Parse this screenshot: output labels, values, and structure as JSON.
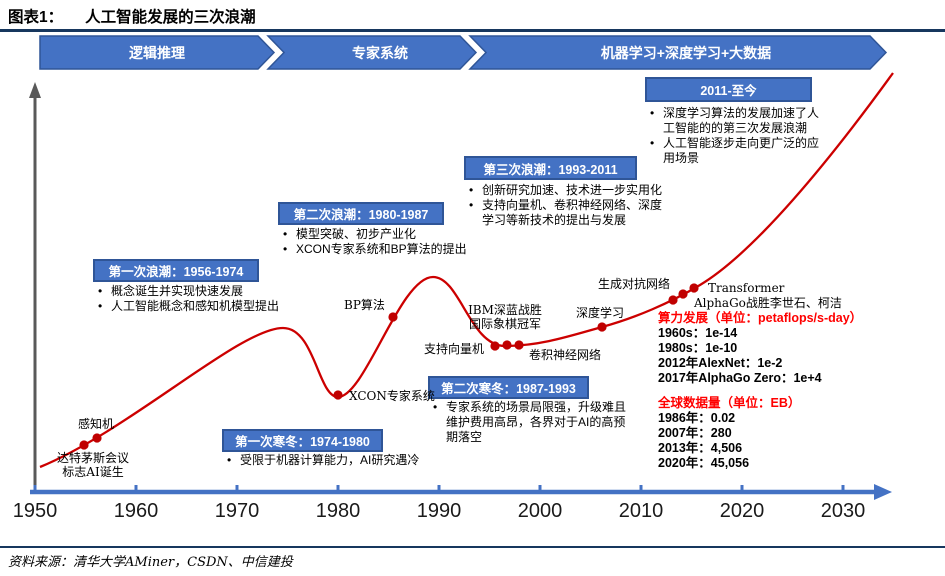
{
  "header": {
    "figure_label": "图表1：",
    "title": "人工智能发展的三次浪潮"
  },
  "footer": {
    "source": "资料来源：清华大学AMiner，CSDN、中信建投"
  },
  "colors": {
    "banner_blue": "#4472C4",
    "banner_border": "#2F5597",
    "navy_rule": "#17375E",
    "curve_red": "#CC0000",
    "dot_red": "#C00000",
    "axis_blue": "#4472C4",
    "y_axis_gray": "#595959",
    "stats_heading_red": "#FF0000"
  },
  "banner": {
    "segments": [
      {
        "label": "逻辑推理"
      },
      {
        "label": "专家系统"
      },
      {
        "label": "机器学习+深度学习+大数据"
      }
    ]
  },
  "chart_data": {
    "type": "line",
    "title": "人工智能发展的三次浪潮",
    "xlabel": "",
    "ylabel": "",
    "grid": false,
    "xlim": [
      1950,
      2035
    ],
    "x_ticks": [
      "1950",
      "1960",
      "1970",
      "1980",
      "1990",
      "2000",
      "2010",
      "2020",
      "2030"
    ],
    "waves": [
      {
        "title": "第一次浪潮：1956-1974",
        "bullets": [
          "概念诞生并实现快速发展",
          "人工智能概念和感知机模型提出"
        ]
      },
      {
        "title": "第二次浪潮：1980-1987",
        "bullets": [
          "模型突破、初步产业化",
          "XCON专家系统和BP算法的提出"
        ]
      },
      {
        "title": "第三次浪潮：1993-2011",
        "bullets": [
          "创新研究加速、技术进一步实用化",
          "支持向量机、卷积神经网络、深度学习等新技术的提出与发展"
        ]
      },
      {
        "title": "2011-至今",
        "bullets": [
          "深度学习算法的发展加速了人工智能的的第三次发展浪潮",
          "人工智能逐步走向更广泛的应用场景"
        ]
      }
    ],
    "winters": [
      {
        "title": "第一次寒冬：1974-1980",
        "bullets": [
          "受限于机器计算能力，AI研究遇冷"
        ]
      },
      {
        "title": "第二次寒冬：1987-1993",
        "bullets": [
          "专家系统的场景局限强，升级难且维护费用高昂，各界对于AI的高预期落空"
        ]
      }
    ],
    "events": [
      {
        "label": "感知机",
        "year": 1957
      },
      {
        "label": "达特茅斯会议\n标志AI诞生",
        "year": 1956
      },
      {
        "label": "XCON专家系统",
        "year": 1980
      },
      {
        "label": "BP算法",
        "year": 1986
      },
      {
        "label": "支持向量机",
        "year": 1995
      },
      {
        "label": "IBM深蓝战胜\n国际象棋冠军",
        "year": 1997
      },
      {
        "label": "卷积神经网络",
        "year": 1998
      },
      {
        "label": "深度学习",
        "year": 2006
      },
      {
        "label": "生成对抗网络",
        "year": 2014
      },
      {
        "label": "Transformer",
        "year": 2017
      },
      {
        "label": "AlphaGo战胜李世石、柯洁",
        "year": 2016
      }
    ]
  },
  "stats": [
    {
      "heading": "算力发展（单位：petaflops/s-day）",
      "lines": [
        "1960s：1e-14",
        "1980s：1e-10",
        "2012年AlexNet：1e-2",
        "2017年AlphaGo Zero：1e+4"
      ]
    },
    {
      "heading": "全球数据量（单位：EB）",
      "lines": [
        "1986年：0.02",
        "2007年：280",
        "2013年：4,506",
        "2020年：45,056"
      ]
    }
  ]
}
